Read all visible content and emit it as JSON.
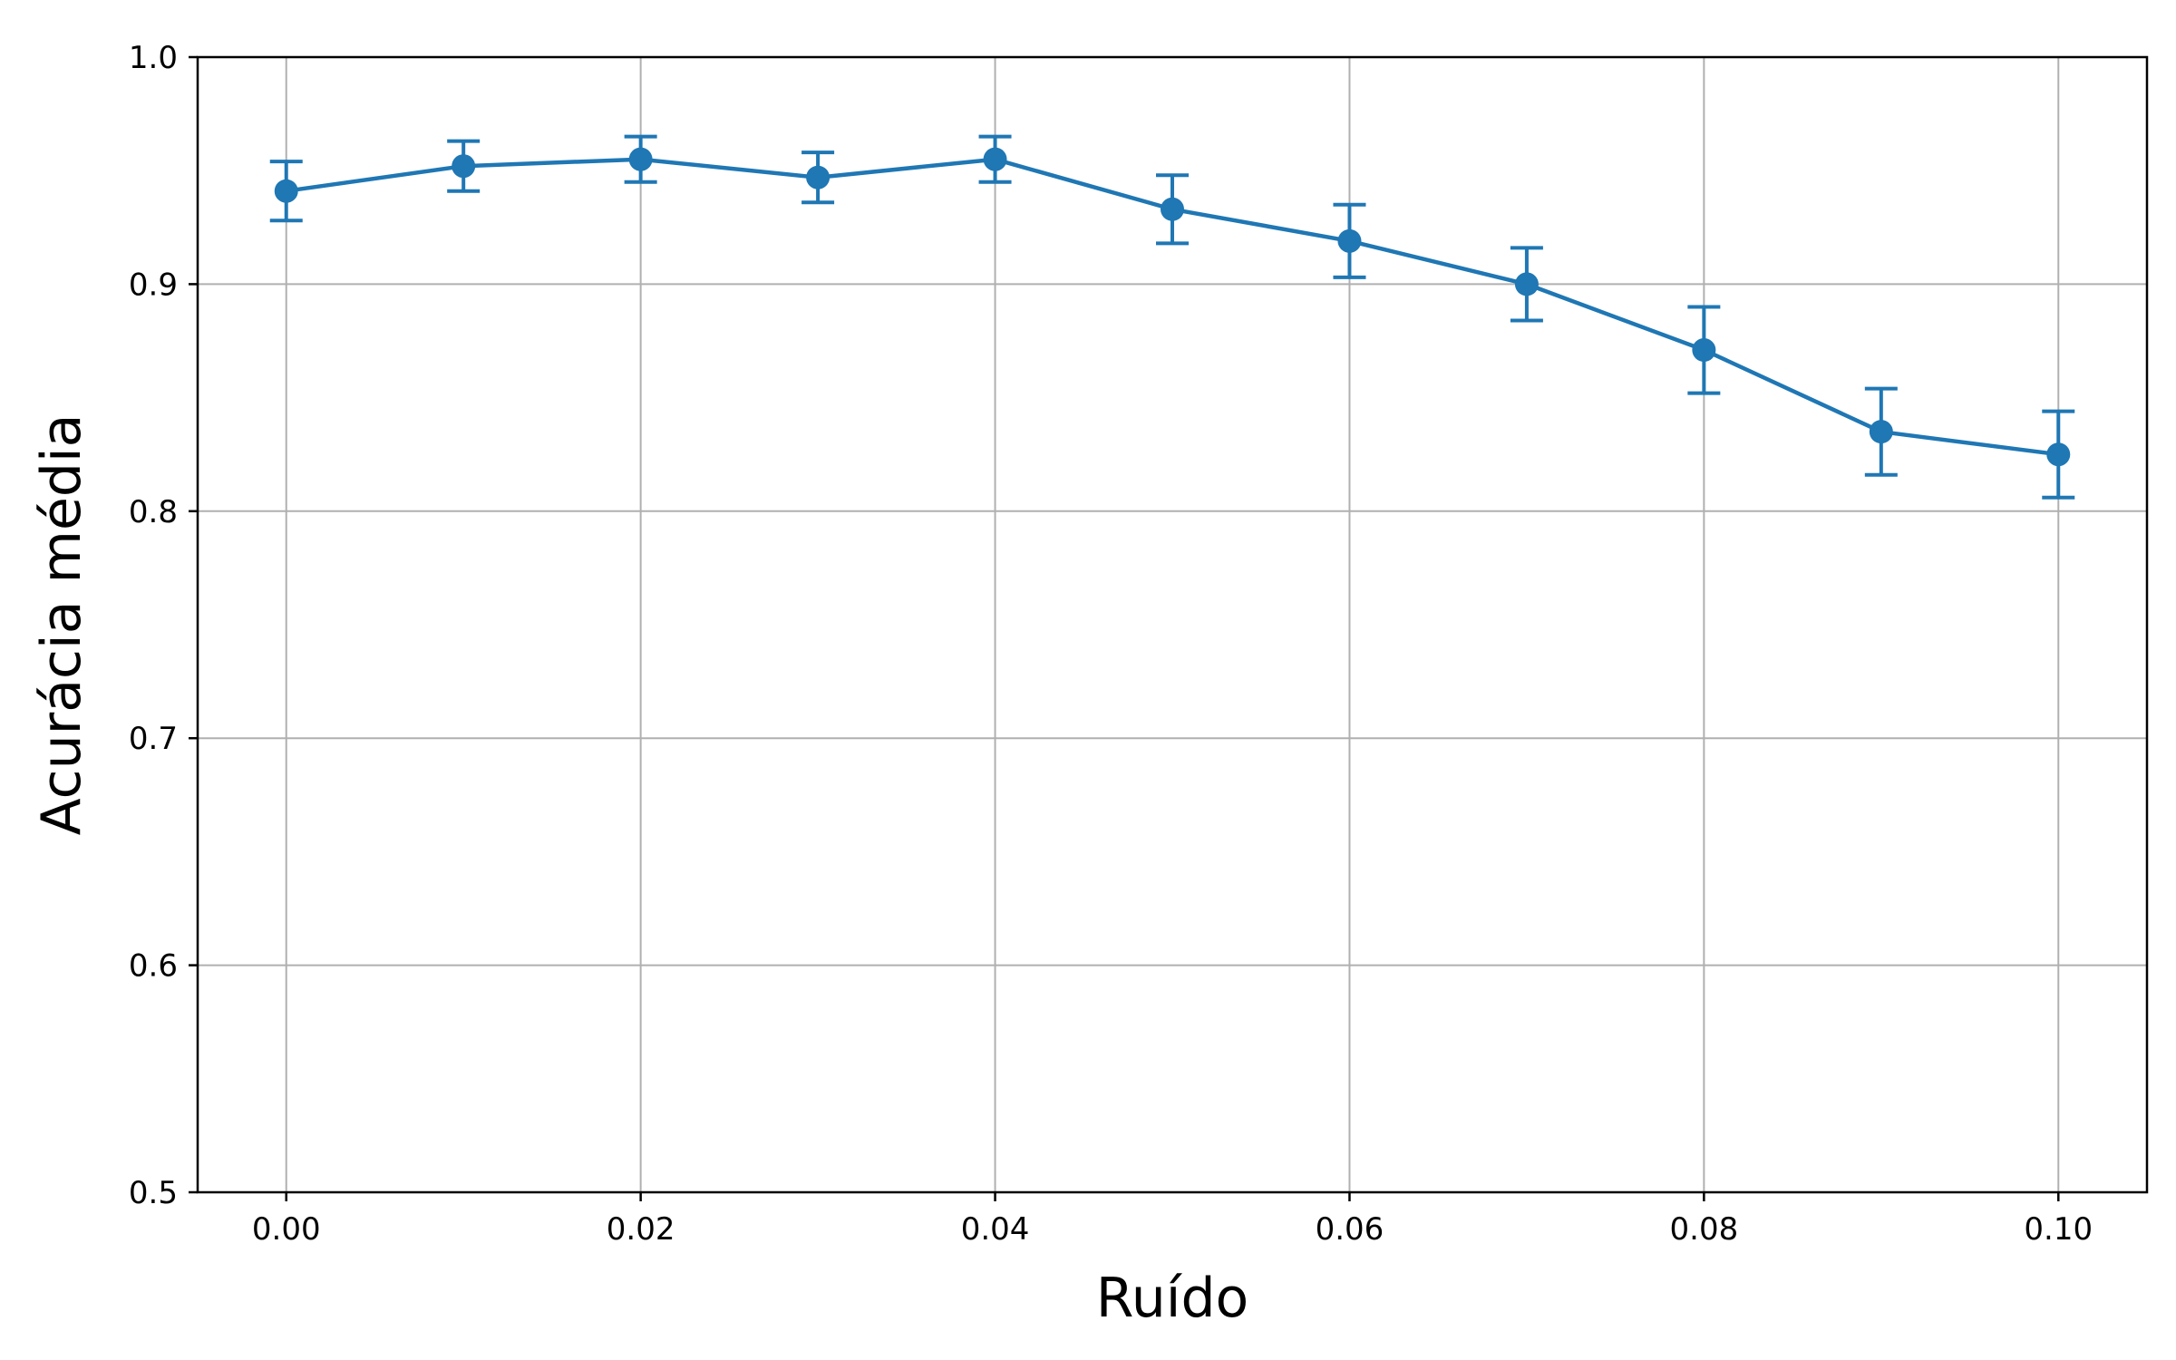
{
  "chart_data": {
    "type": "line",
    "title": "",
    "xlabel": "Ruído",
    "ylabel": "Acurácia média",
    "xlim": [
      -0.005,
      0.105
    ],
    "ylim": [
      0.5,
      1.0
    ],
    "grid": true,
    "x_ticks": [
      "0.00",
      "0.02",
      "0.04",
      "0.06",
      "0.08",
      "0.10"
    ],
    "x_tick_values": [
      0.0,
      0.02,
      0.04,
      0.06,
      0.08,
      0.1
    ],
    "y_ticks": [
      "0.5",
      "0.6",
      "0.7",
      "0.8",
      "0.9",
      "1.0"
    ],
    "y_tick_values": [
      0.5,
      0.6,
      0.7,
      0.8,
      0.9,
      1.0
    ],
    "series": [
      {
        "color": "#1f77b4",
        "x": [
          0.0,
          0.01,
          0.02,
          0.03,
          0.04,
          0.05,
          0.06,
          0.07,
          0.08,
          0.09,
          0.1
        ],
        "y": [
          0.941,
          0.952,
          0.955,
          0.947,
          0.955,
          0.933,
          0.919,
          0.9,
          0.871,
          0.835,
          0.825
        ],
        "err": [
          0.013,
          0.011,
          0.01,
          0.011,
          0.01,
          0.015,
          0.016,
          0.016,
          0.019,
          0.019,
          0.019
        ]
      }
    ]
  }
}
